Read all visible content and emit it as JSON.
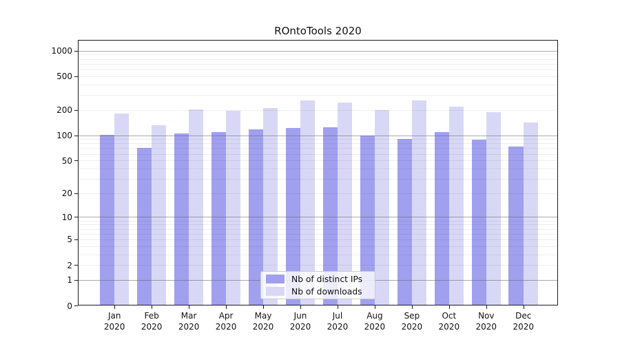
{
  "chart_data": {
    "type": "bar",
    "title": "ROntoTools 2020",
    "categories": [
      "Jan",
      "Feb",
      "Mar",
      "Apr",
      "May",
      "Jun",
      "Jul",
      "Aug",
      "Sep",
      "Oct",
      "Nov",
      "Dec"
    ],
    "category_year": "2020",
    "series": [
      {
        "name": "Nb of distinct IPs",
        "color": "#a0a0ef",
        "values": [
          102,
          70,
          104,
          110,
          118,
          121,
          124,
          100,
          91,
          108,
          89,
          74
        ]
      },
      {
        "name": "Nb of downloads",
        "color": "#d8d8f6",
        "values": [
          182,
          132,
          203,
          196,
          211,
          258,
          244,
          198,
          258,
          220,
          189,
          141
        ]
      }
    ],
    "xlabel": "",
    "ylabel": "",
    "y_scale": "log10(value+1)",
    "y_ticks": [
      1000,
      500,
      200,
      100,
      50,
      20,
      10,
      5,
      2,
      1,
      0
    ],
    "ylim": [
      0,
      1300
    ],
    "grid": {
      "major_lines": [
        1,
        10,
        100,
        1000
      ],
      "minor_multipliers": [
        2,
        3,
        4,
        5,
        6,
        7,
        8,
        9
      ],
      "minor_decades": [
        1,
        10,
        100
      ]
    },
    "legend_position": "inside-bottom-center"
  }
}
